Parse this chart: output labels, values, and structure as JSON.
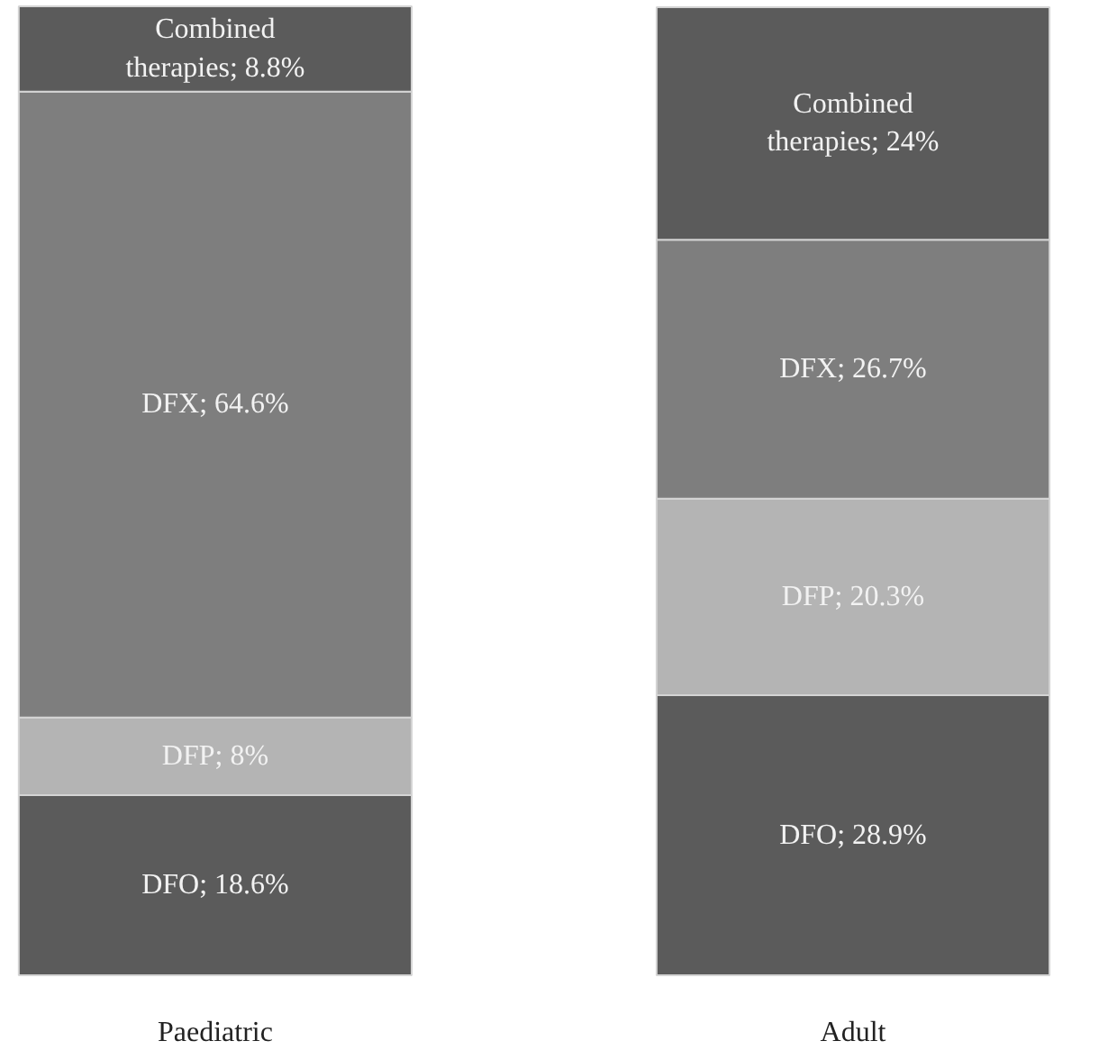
{
  "chart_data": {
    "type": "bar",
    "stacked": true,
    "categories": [
      "Paediatric",
      "Adult"
    ],
    "series": [
      {
        "color": "#5b5b5b",
        "values": [
          18.6,
          28.9
        ],
        "value_labels": [
          "DFO; 18.6%",
          "DFO; 28.9%"
        ]
      },
      {
        "color": "#b4b4b4",
        "values": [
          8,
          20.3
        ],
        "value_labels": [
          "DFP; 8%",
          "DFP; 20.3%"
        ]
      },
      {
        "color": "#7e7e7e",
        "values": [
          64.6,
          26.7
        ],
        "value_labels": [
          "DFX; 64.6%",
          "DFX; 26.7%"
        ]
      },
      {
        "color": "#5b5b5b",
        "values": [
          8.8,
          24
        ],
        "value_labels": [
          "Combined therapies; 8.8%",
          "Combined therapies; 24%"
        ]
      }
    ]
  }
}
